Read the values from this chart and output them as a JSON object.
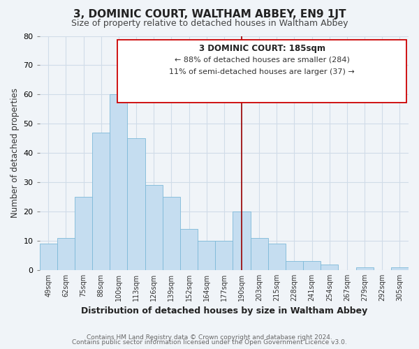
{
  "title": "3, DOMINIC COURT, WALTHAM ABBEY, EN9 1JT",
  "subtitle": "Size of property relative to detached houses in Waltham Abbey",
  "xlabel": "Distribution of detached houses by size in Waltham Abbey",
  "ylabel": "Number of detached properties",
  "footer_lines": [
    "Contains HM Land Registry data © Crown copyright and database right 2024.",
    "Contains public sector information licensed under the Open Government Licence v3.0."
  ],
  "bin_labels": [
    "49sqm",
    "62sqm",
    "75sqm",
    "88sqm",
    "100sqm",
    "113sqm",
    "126sqm",
    "139sqm",
    "152sqm",
    "164sqm",
    "177sqm",
    "190sqm",
    "203sqm",
    "215sqm",
    "228sqm",
    "241sqm",
    "254sqm",
    "267sqm",
    "279sqm",
    "292sqm",
    "305sqm"
  ],
  "bar_values": [
    9,
    11,
    25,
    47,
    60,
    45,
    29,
    25,
    14,
    10,
    10,
    20,
    11,
    9,
    3,
    3,
    2,
    0,
    1,
    0,
    1
  ],
  "bar_color": "#c5ddf0",
  "bar_edge_color": "#7db9d8",
  "vline_x": 11.5,
  "vline_color": "#990000",
  "ylim": [
    0,
    80
  ],
  "yticks": [
    0,
    10,
    20,
    30,
    40,
    50,
    60,
    70,
    80
  ],
  "annotation_title": "3 DOMINIC COURT: 185sqm",
  "annotation_line1": "← 88% of detached houses are smaller (284)",
  "annotation_line2": "11% of semi-detached houses are larger (37) →",
  "grid_color": "#d0dce8",
  "background_color": "#f0f4f8",
  "title_fontsize": 11,
  "subtitle_fontsize": 9
}
